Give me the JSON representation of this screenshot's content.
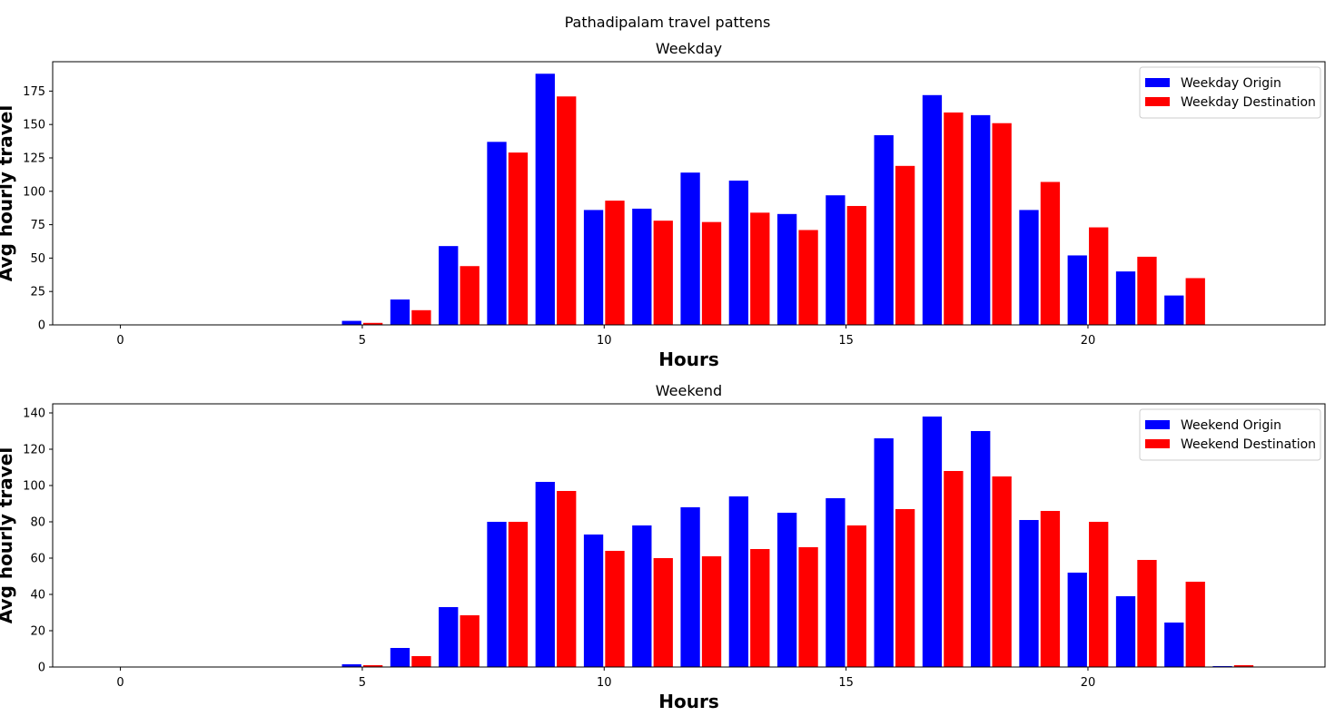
{
  "figure": {
    "suptitle": "Pathadipalam travel pattens"
  },
  "chart_data": [
    {
      "type": "bar",
      "title": "Weekday",
      "xlabel": "Hours",
      "ylabel": "Avg hourly travel",
      "xlim": [
        -1.4,
        24.9
      ],
      "ylim": [
        0,
        197
      ],
      "xticks": [
        0,
        5,
        10,
        15,
        20
      ],
      "yticks": [
        0,
        25,
        50,
        75,
        100,
        125,
        150,
        175
      ],
      "legend_position": "upper-right",
      "x": [
        5,
        6,
        7,
        8,
        9,
        10,
        11,
        12,
        13,
        14,
        15,
        16,
        17,
        18,
        19,
        20,
        21,
        22
      ],
      "series": [
        {
          "name": "Weekday Origin",
          "color": "#0000ff",
          "offset": -0.22,
          "values": [
            3,
            19,
            59,
            137,
            188,
            86,
            87,
            114,
            108,
            83,
            97,
            142,
            172,
            157,
            86,
            52,
            40,
            22
          ]
        },
        {
          "name": "Weekday Destination",
          "color": "#ff0000",
          "offset": 0.22,
          "values": [
            1.5,
            11,
            44,
            129,
            171,
            93,
            78,
            77,
            84,
            71,
            89,
            119,
            159,
            151,
            107,
            73,
            51,
            35
          ]
        }
      ]
    },
    {
      "type": "bar",
      "title": "Weekend",
      "xlabel": "Hours",
      "ylabel": "Avg hourly travel",
      "xlim": [
        -1.4,
        24.9
      ],
      "ylim": [
        0,
        145
      ],
      "xticks": [
        0,
        5,
        10,
        15,
        20
      ],
      "yticks": [
        0,
        20,
        40,
        60,
        80,
        100,
        120,
        140
      ],
      "legend_position": "upper-right",
      "x": [
        5,
        6,
        7,
        8,
        9,
        10,
        11,
        12,
        13,
        14,
        15,
        16,
        17,
        18,
        19,
        20,
        21,
        22,
        23
      ],
      "series": [
        {
          "name": "Weekend Origin",
          "color": "#0000ff",
          "offset": -0.22,
          "values": [
            1.5,
            10.5,
            33,
            80,
            102,
            73,
            78,
            88,
            94,
            85,
            93,
            126,
            138,
            130,
            81,
            52,
            39,
            24.5,
            0.5
          ]
        },
        {
          "name": "Weekend Destination",
          "color": "#ff0000",
          "offset": 0.22,
          "values": [
            1,
            6,
            28.5,
            80,
            97,
            64,
            60,
            61,
            65,
            66,
            78,
            87,
            108,
            105,
            86,
            80,
            59,
            47,
            1
          ]
        }
      ]
    }
  ]
}
